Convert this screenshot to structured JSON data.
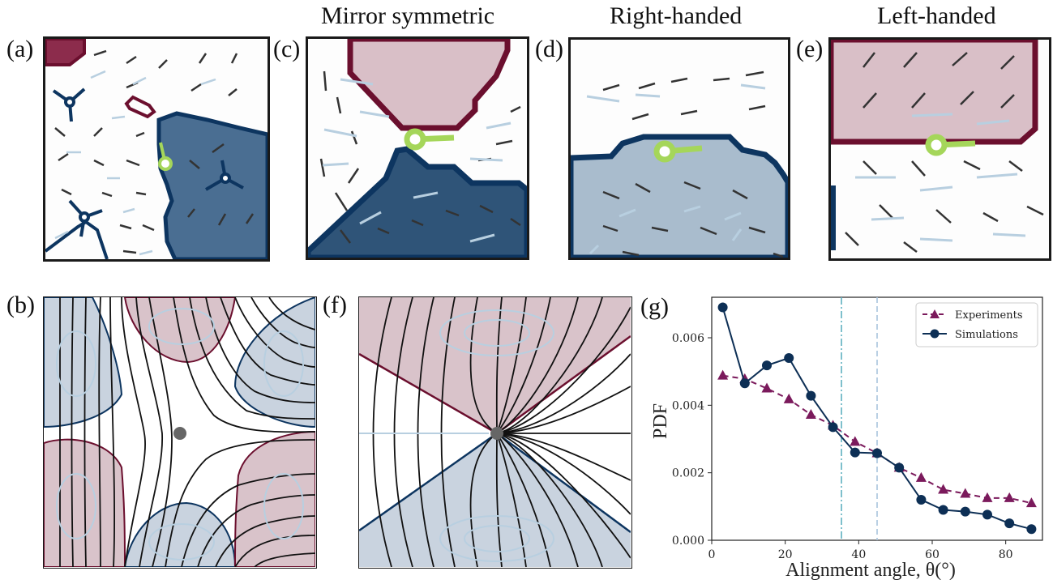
{
  "panel_labels": {
    "a": "(a)",
    "b": "(b)",
    "c": "(c)",
    "d": "(d)",
    "e": "(e)",
    "f": "(f)",
    "g": "(g)"
  },
  "titles": {
    "c": "Mirror symmetric",
    "d": "Right-handed",
    "e": "Left-handed"
  },
  "colors": {
    "maroon": "#6b0f2e",
    "navy": "#0d3560",
    "lime": "#a5d65a",
    "arrow": "#b8cfe0",
    "red_fill": "#d9bfc7",
    "blue_fill": "#a9bccd"
  },
  "chart_data": {
    "type": "line",
    "xlabel": "Alignment angle, θ(°)",
    "ylabel": "PDF",
    "xlim": [
      0,
      90
    ],
    "ylim": [
      0.0,
      0.0072
    ],
    "xticks": [
      0,
      20,
      40,
      60,
      80
    ],
    "yticks": [
      0.0,
      0.002,
      0.004,
      0.006
    ],
    "ytick_labels": [
      "0.000",
      "0.002",
      "0.004",
      "0.006"
    ],
    "vlines": [
      {
        "x": 35.3,
        "style": "dashdot",
        "color": "#5fb0c0"
      },
      {
        "x": 45.0,
        "style": "dashed",
        "color": "#a9c4dd"
      }
    ],
    "legend_position": "top-right",
    "series": [
      {
        "name": "Experiments",
        "color": "#7b1a5c",
        "marker": "triangle",
        "dash": true,
        "x": [
          3,
          9,
          15,
          21,
          27,
          33,
          39,
          45,
          51,
          57,
          63,
          69,
          75,
          81,
          87
        ],
        "y": [
          0.00488,
          0.00478,
          0.0045,
          0.00418,
          0.00372,
          0.0034,
          0.00292,
          0.00258,
          0.00215,
          0.00185,
          0.0015,
          0.00138,
          0.00125,
          0.00125,
          0.0011
        ]
      },
      {
        "name": "Simulations",
        "color": "#0d2f55",
        "marker": "circle",
        "dash": false,
        "x": [
          3,
          9,
          15,
          21,
          27,
          33,
          39,
          45,
          51,
          57,
          63,
          69,
          75,
          81,
          87
        ],
        "y": [
          0.0069,
          0.00465,
          0.00518,
          0.0054,
          0.00428,
          0.00335,
          0.0026,
          0.00258,
          0.00215,
          0.0012,
          0.0009,
          0.00085,
          0.00076,
          0.0005,
          0.00033
        ]
      }
    ]
  }
}
